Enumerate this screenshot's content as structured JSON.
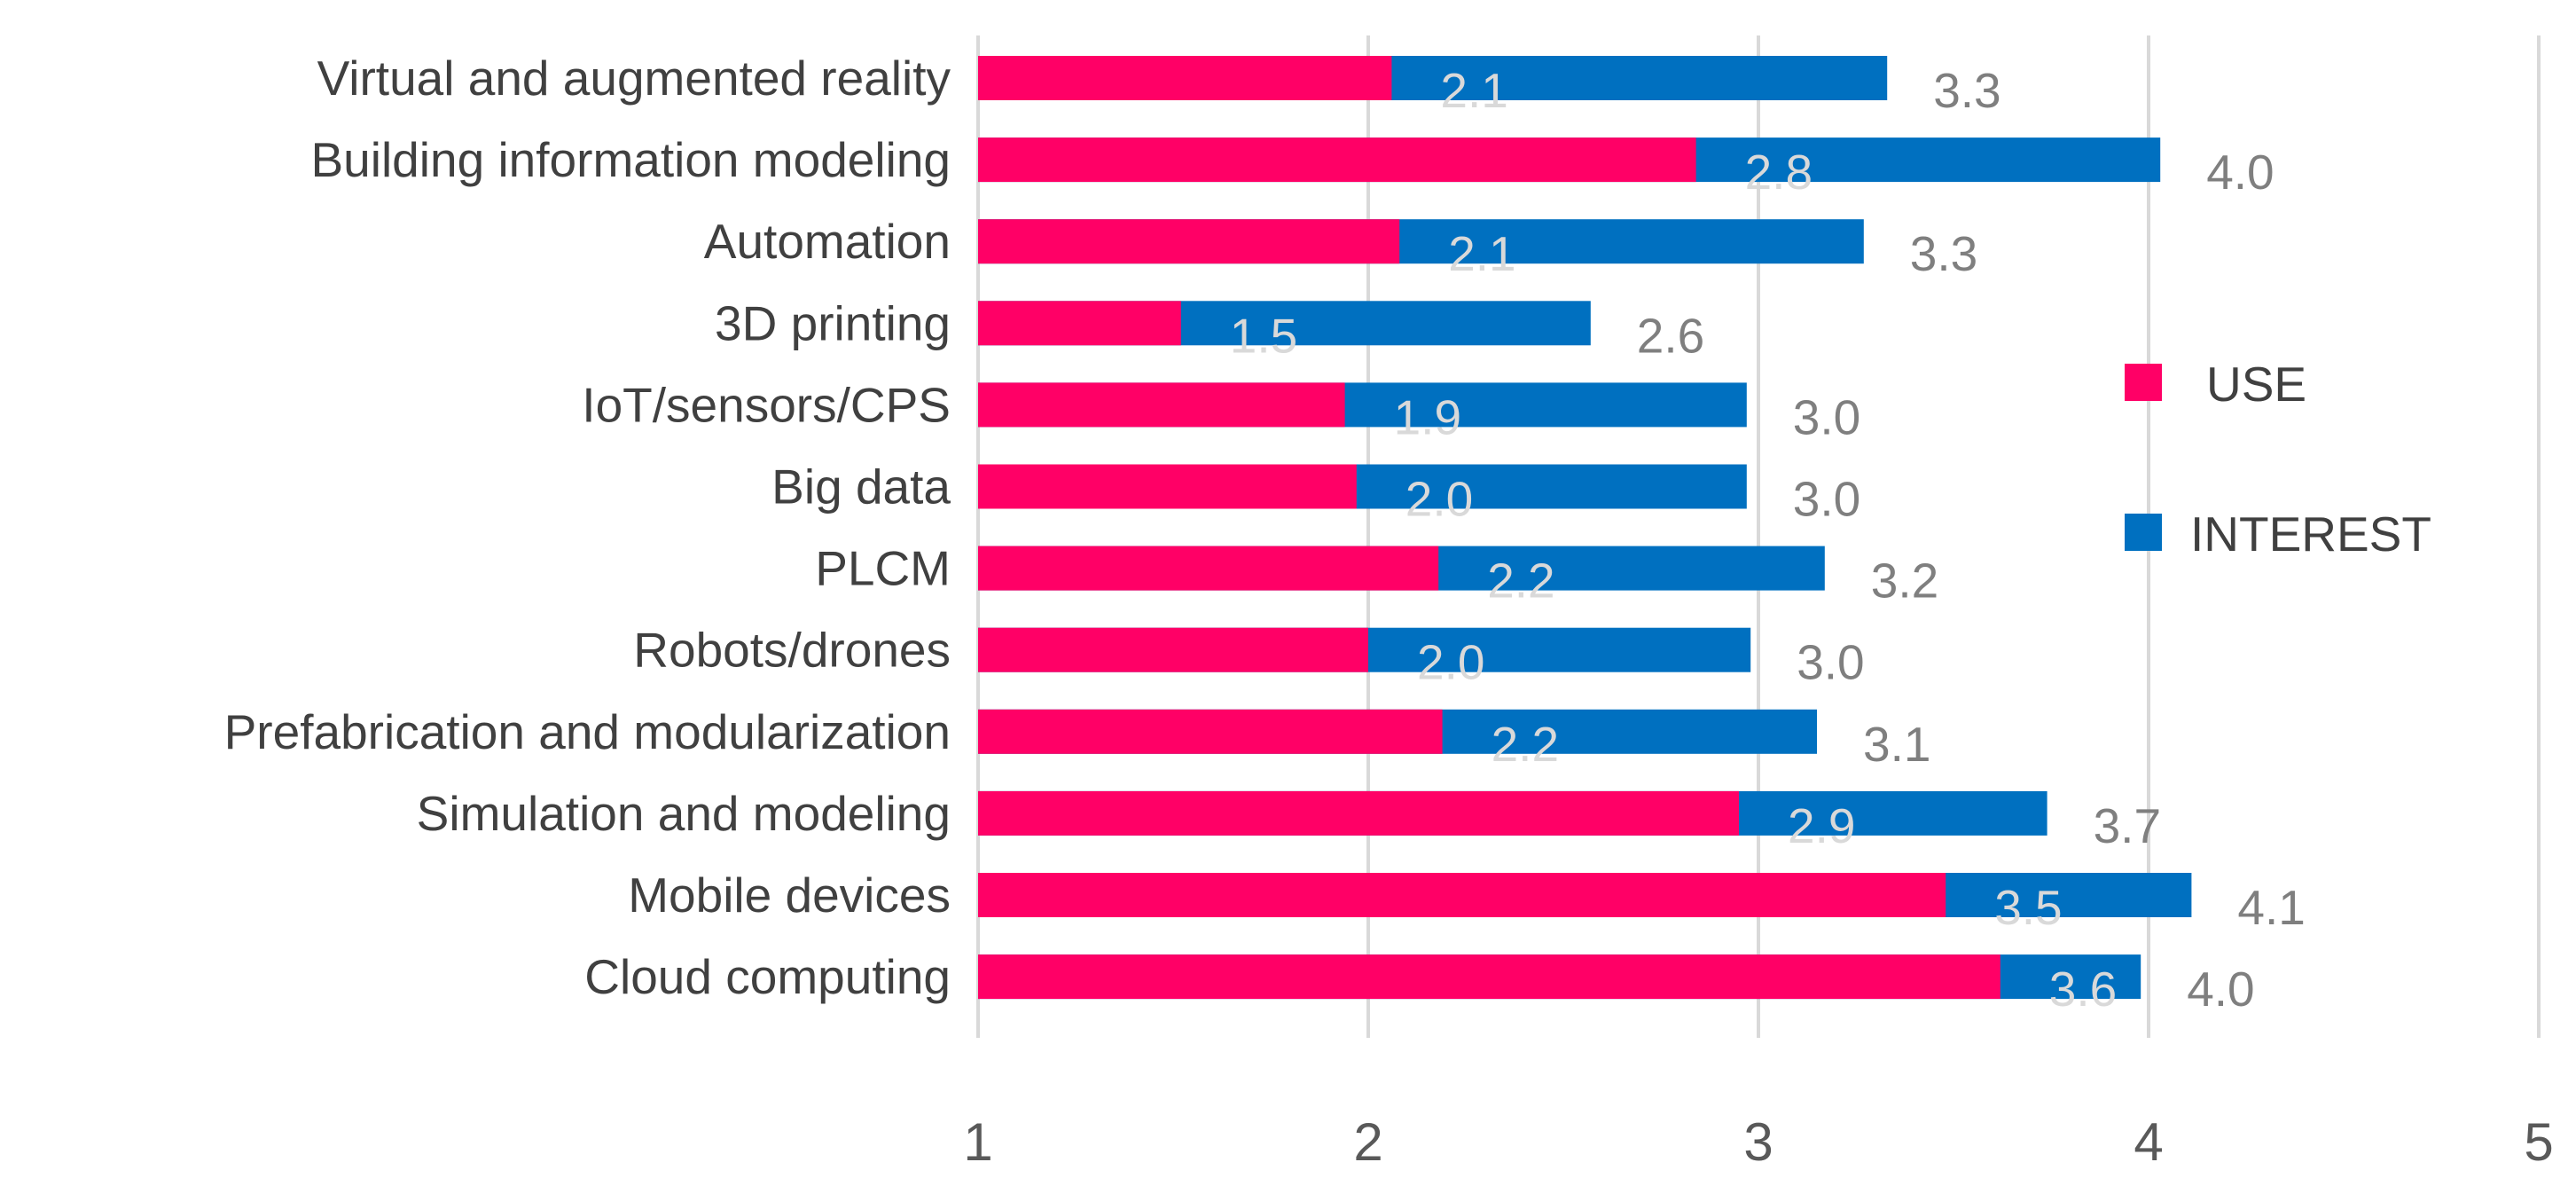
{
  "chart_data": {
    "type": "bar",
    "orientation": "horizontal",
    "stacked": "overlay",
    "categories": [
      "Virtual and augmented reality",
      "Building information modeling",
      "Automation",
      "3D printing",
      "IoT/sensors/CPS",
      "Big data",
      "PLCM",
      "Robots/drones",
      "Prefabrication and modularization",
      "Simulation and modeling",
      "Mobile devices",
      "Cloud computing"
    ],
    "series": [
      {
        "name": "USE",
        "color": "#ff0066",
        "values": [
          2.06,
          2.84,
          2.08,
          1.52,
          1.94,
          1.97,
          2.18,
          2.0,
          2.19,
          2.95,
          3.48,
          3.62
        ],
        "labels": [
          "2.1",
          "2.8",
          "2.1",
          "1.5",
          "1.9",
          "2.0",
          "2.2",
          "2.0",
          "2.2",
          "2.9",
          "3.5",
          "3.6"
        ]
      },
      {
        "name": "INTEREST",
        "color": "#0070c0",
        "values": [
          3.33,
          4.03,
          3.27,
          2.57,
          2.97,
          2.97,
          3.17,
          2.98,
          3.15,
          3.74,
          4.11,
          3.98
        ],
        "labels": [
          "3.3",
          "4.0",
          "3.3",
          "2.6",
          "3.0",
          "3.0",
          "3.2",
          "3.0",
          "3.1",
          "3.7",
          "4.1",
          "4.0"
        ]
      }
    ],
    "x_ticks": [
      "1",
      "2",
      "3",
      "4",
      "5"
    ],
    "xlim": [
      1,
      5
    ],
    "grid": "vertical",
    "legend_position": "right"
  }
}
